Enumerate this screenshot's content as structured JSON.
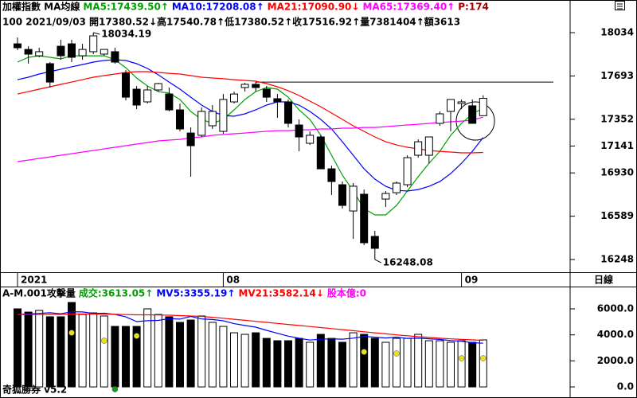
{
  "chart_data": [
    {
      "type": "candlestick",
      "title": "加權指數 MA均線",
      "info": "100 2021/09/03 開17380.52↓高17540.78↑低17380.52↑收17516.92↑量7381404↑額3613",
      "extra": {
        "text": "P:174",
        "color": "#a00000"
      },
      "period": "日線",
      "categories": [
        "2021",
        null,
        null,
        null,
        null,
        null,
        null,
        null,
        null,
        null,
        null,
        null,
        null,
        null,
        null,
        null,
        null,
        null,
        null,
        "08",
        null,
        null,
        null,
        null,
        null,
        null,
        null,
        null,
        null,
        null,
        null,
        null,
        null,
        null,
        null,
        null,
        null,
        null,
        null,
        null,
        null,
        "09",
        null,
        null
      ],
      "open": [
        17946,
        17902,
        17852,
        17790,
        17927,
        17946,
        17852,
        17884,
        17865,
        17884,
        17714,
        17589,
        17489,
        17583,
        17551,
        17426,
        17244,
        17226,
        17301,
        17257,
        17489,
        17602,
        17627,
        17589,
        17514,
        17489,
        17307,
        17163,
        17213,
        16962,
        16837,
        16630,
        16762,
        16430,
        16724,
        16774,
        16837,
        17069,
        17069,
        17320,
        17414,
        17476,
        17458,
        17380.52
      ],
      "high": [
        17996,
        17927,
        17915,
        17802,
        17978,
        17978,
        17946,
        18034.19,
        17902,
        17915,
        17739,
        17614,
        17614,
        17639,
        17602,
        17476,
        17288,
        17445,
        17464,
        17551,
        17570,
        17639,
        17645,
        17614,
        17551,
        17508,
        17351,
        17257,
        17226,
        16987,
        16862,
        16850,
        16799,
        16474,
        16787,
        16862,
        17069,
        17194,
        17213,
        17414,
        17508,
        17508,
        17508,
        17540.78
      ],
      "low": [
        17896,
        17790,
        17840,
        17602,
        17821,
        17802,
        17821,
        17865,
        17852,
        17790,
        17501,
        17432,
        17476,
        17570,
        17414,
        17257,
        16900,
        17213,
        17276,
        17238,
        17476,
        17570,
        17570,
        17489,
        17363,
        17288,
        17100,
        17150,
        16962,
        16756,
        16649,
        16411,
        16361,
        16248.08,
        16662,
        16756,
        16818,
        17050,
        17006,
        17301,
        17257,
        17432,
        17320,
        17380.52
      ],
      "close": [
        17915,
        17865,
        17884,
        17645,
        17852,
        17840,
        17902,
        18009,
        17902,
        17802,
        17526,
        17464,
        17583,
        17633,
        17426,
        17276,
        17144,
        17414,
        17414,
        17508,
        17551,
        17627,
        17602,
        17526,
        17489,
        17320,
        17213,
        17226,
        16962,
        16862,
        16674,
        16825,
        16380,
        16336,
        16768,
        16850,
        17050,
        17175,
        17213,
        17395,
        17508,
        17489,
        17320,
        17516.92
      ],
      "series": [
        {
          "label": "MA5:17439.50↑",
          "color": "#00a000",
          "values": [
            17802,
            17840,
            17852,
            17840,
            17827,
            17852,
            17852,
            17852,
            17852,
            17821,
            17758,
            17677,
            17614,
            17570,
            17558,
            17508,
            17414,
            17351,
            17320,
            17351,
            17426,
            17508,
            17570,
            17602,
            17589,
            17526,
            17426,
            17351,
            17226,
            17069,
            16912,
            16787,
            16649,
            16599,
            16599,
            16674,
            16787,
            16900,
            17006,
            17100,
            17226,
            17320,
            17395,
            17439.5
          ]
        },
        {
          "label": "MA10:17208.08↑",
          "color": "#0000ff",
          "values": [
            17664,
            17683,
            17708,
            17727,
            17746,
            17765,
            17783,
            17802,
            17815,
            17821,
            17815,
            17790,
            17752,
            17702,
            17645,
            17589,
            17526,
            17464,
            17414,
            17382,
            17376,
            17395,
            17426,
            17464,
            17489,
            17489,
            17464,
            17414,
            17351,
            17276,
            17175,
            17069,
            16962,
            16881,
            16824,
            16793,
            16787,
            16799,
            16824,
            16862,
            16925,
            17006,
            17100,
            17208.08
          ]
        },
        {
          "label": "MA21:17090.90↓",
          "color": "#ff0000",
          "values": [
            17551,
            17570,
            17589,
            17608,
            17627,
            17645,
            17664,
            17683,
            17696,
            17708,
            17721,
            17727,
            17727,
            17721,
            17714,
            17708,
            17696,
            17683,
            17677,
            17671,
            17664,
            17658,
            17652,
            17633,
            17608,
            17577,
            17539,
            17495,
            17451,
            17401,
            17351,
            17301,
            17257,
            17213,
            17175,
            17150,
            17132,
            17119,
            17106,
            17100,
            17094,
            17088,
            17088,
            17090.9
          ]
        },
        {
          "label": "MA65:17369.40↑",
          "color": "#ff00ff",
          "values": [
            17019,
            17031,
            17044,
            17056,
            17069,
            17081,
            17094,
            17106,
            17119,
            17132,
            17144,
            17157,
            17169,
            17182,
            17188,
            17194,
            17207,
            17213,
            17226,
            17232,
            17238,
            17244,
            17251,
            17257,
            17263,
            17263,
            17269,
            17269,
            17276,
            17276,
            17282,
            17282,
            17288,
            17288,
            17294,
            17301,
            17307,
            17313,
            17320,
            17326,
            17332,
            17338,
            17345,
            17369.4
          ]
        }
      ],
      "labeled_points": [
        {
          "list": "high",
          "index": 7
        },
        {
          "list": "low",
          "index": 33
        }
      ],
      "hline": 17645,
      "ylim": [
        16148,
        18291
      ],
      "yticks": [
        18034,
        17693,
        17352,
        17141,
        16930,
        16589,
        16248
      ]
    },
    {
      "type": "bar",
      "title": "A-M.001攻擊量",
      "label": "成交:3613.05↑",
      "label_color": "#00a000",
      "extra": {
        "text": "股本億:0",
        "color": "#ff00ff"
      },
      "footer": "奇狐勝券 v5.2",
      "values": [
        6000,
        5750,
        5880,
        5390,
        5390,
        6490,
        5570,
        5690,
        5450,
        4650,
        4650,
        4650,
        6000,
        5570,
        5390,
        4960,
        5140,
        5450,
        4960,
        4650,
        4160,
        4040,
        4160,
        3730,
        3550,
        3550,
        3730,
        3430,
        4040,
        3730,
        3430,
        4160,
        4040,
        3730,
        3430,
        3730,
        3730,
        4040,
        3550,
        3550,
        3430,
        3550,
        3430,
        3613.05
      ],
      "series": [
        {
          "label": "MV5:3355.19↑",
          "color": "#0000ff",
          "values": [
            5570,
            5600,
            5650,
            5700,
            5620,
            5780,
            5760,
            5650,
            5660,
            5570,
            5380,
            5020,
            5090,
            5110,
            5250,
            5210,
            5420,
            5220,
            5180,
            5080,
            4860,
            4720,
            4590,
            4350,
            4120,
            3900,
            3740,
            3600,
            3660,
            3700,
            3670,
            3750,
            3880,
            3820,
            3760,
            3820,
            3730,
            3740,
            3700,
            3650,
            3560,
            3510,
            3400,
            3355.19
          ]
        },
        {
          "label": "MV21:3582.14↓",
          "color": "#ff0000",
          "values": [
            5570,
            5560,
            5560,
            5570,
            5570,
            5600,
            5600,
            5600,
            5600,
            5580,
            5560,
            5540,
            5540,
            5530,
            5510,
            5480,
            5450,
            5420,
            5350,
            5280,
            5200,
            5120,
            5040,
            4960,
            4880,
            4800,
            4720,
            4640,
            4560,
            4480,
            4400,
            4320,
            4240,
            4160,
            4080,
            4000,
            3930,
            3860,
            3800,
            3740,
            3690,
            3650,
            3610,
            3582.14
          ]
        }
      ],
      "markers": [
        {
          "color": "#e8e020",
          "values": [
            null,
            null,
            null,
            null,
            null,
            4160,
            null,
            null,
            3550,
            null,
            null,
            3920,
            null,
            null,
            null,
            null,
            null,
            null,
            null,
            null,
            null,
            null,
            null,
            null,
            null,
            null,
            null,
            null,
            null,
            null,
            null,
            null,
            2690,
            null,
            null,
            2570,
            null,
            null,
            null,
            null,
            null,
            2200,
            null,
            2200
          ]
        },
        {
          "color": "#1a9a1a",
          "values": [
            null,
            null,
            null,
            null,
            null,
            null,
            null,
            null,
            null,
            -180,
            null,
            null,
            null,
            null,
            null,
            null,
            null,
            null,
            null,
            null,
            null,
            null,
            null,
            null,
            null,
            null,
            null,
            null,
            null,
            null,
            null,
            null,
            null,
            null,
            null,
            null,
            null,
            null,
            null,
            null,
            null,
            null,
            null,
            null
          ]
        }
      ],
      "ylim": [
        -670,
        7590
      ],
      "yticks": [
        {
          "value": 6000,
          "label": "6000.0"
        },
        {
          "value": 4000,
          "label": "4000.0"
        },
        {
          "value": 2000,
          "label": "2000.0"
        },
        {
          "value": 0,
          "label": "0.0"
        }
      ]
    }
  ]
}
